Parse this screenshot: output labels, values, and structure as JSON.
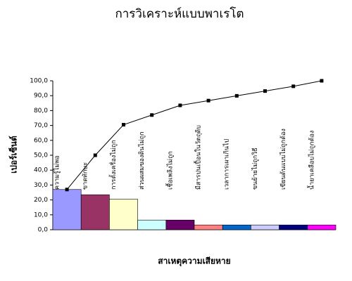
{
  "chart_data": {
    "type": "pareto",
    "title": "การวิเคราะห์แบบพาเรโต",
    "y_label": "เปอร์เซ็นต์",
    "x_label": "สาเหตุความเสียหาย",
    "categories": [
      "ความรู้ไม่พอ",
      "ขาดทักษะ",
      "การตั้งเครื่องไม่ถูก",
      "ส่วนผสมของดินไม่ถูก",
      "เชื้อเพลิงไม่ถูก",
      "มีสารปนเปื้อนในวัตถุดิบ",
      "เวลาการเผาเกินไป",
      "ขนย้ายไม่ถูกวิธี",
      "เขียนต้นแบบไม่ถูกต้อง",
      "น้ำยาเคลือบไม่ถูกต้อง"
    ],
    "series": [
      {
        "type": "bar",
        "colors": [
          "#9999ff",
          "#993366",
          "#ffffcc",
          "#ccffff",
          "#660066",
          "#ff8080",
          "#0066cc",
          "#ccccff",
          "#000080",
          "#ff00ff"
        ],
        "values": [
          27,
          23.5,
          20.5,
          6.5,
          6.5,
          3.2,
          3.2,
          3.2,
          3.2,
          3.2
        ]
      },
      {
        "type": "line",
        "color": "#000000",
        "values": [
          27,
          50,
          70.5,
          77,
          83.5,
          86.7,
          89.9,
          93.1,
          96.3,
          100
        ]
      }
    ],
    "ylim": [
      0,
      100
    ],
    "yticks": [
      {
        "value": 0,
        "label": "0,0"
      },
      {
        "value": 10,
        "label": "10,0"
      },
      {
        "value": 20,
        "label": "20,0"
      },
      {
        "value": 30,
        "label": "30,0"
      },
      {
        "value": 40,
        "label": "40,0"
      },
      {
        "value": 50,
        "label": "50,0"
      },
      {
        "value": 60,
        "label": "60,0"
      },
      {
        "value": 70,
        "label": "70,0"
      },
      {
        "value": 80,
        "label": "80,0"
      },
      {
        "value": 90,
        "label": "90,0"
      },
      {
        "value": 100,
        "label": "100,0"
      }
    ],
    "grid": false
  }
}
